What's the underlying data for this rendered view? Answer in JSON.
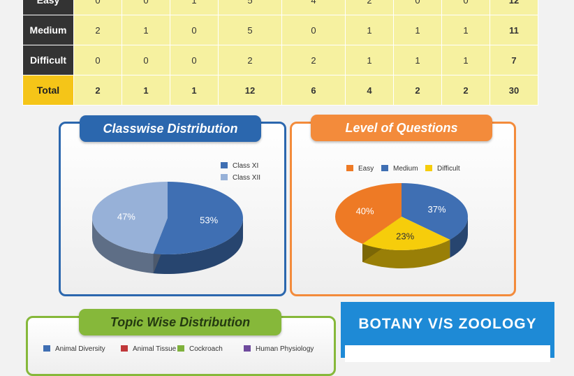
{
  "table": {
    "rows": [
      {
        "label": "Easy",
        "cells": [
          "0",
          "0",
          "1",
          "5",
          "4",
          "2",
          "0",
          "0"
        ],
        "total": "12"
      },
      {
        "label": "Medium",
        "cells": [
          "2",
          "1",
          "0",
          "5",
          "0",
          "1",
          "1",
          "1"
        ],
        "total": "11"
      },
      {
        "label": "Difficult",
        "cells": [
          "0",
          "0",
          "0",
          "2",
          "2",
          "1",
          "1",
          "1"
        ],
        "total": "7"
      },
      {
        "label": "Total",
        "cells": [
          "2",
          "1",
          "1",
          "12",
          "6",
          "4",
          "2",
          "2"
        ],
        "total": "30"
      }
    ]
  },
  "classwise": {
    "title": "Classwise Distribution",
    "legend": [
      "Class XI",
      "Class XII"
    ]
  },
  "level": {
    "title": "Level of Questions",
    "legend": [
      "Easy",
      "Medium",
      "Difficult"
    ]
  },
  "topic": {
    "title": "Topic Wise Distribution",
    "legend": [
      "Animal Diversity",
      "Animal Tissue",
      "Cockroach",
      "Human Physiology"
    ]
  },
  "botany": {
    "title": "BOTANY V/S ZOOLOGY"
  },
  "colors": {
    "classXI": "#3f6fb3",
    "classXII": "#97b1d8",
    "easy": "#ee7a25",
    "medium": "#3f6fb3",
    "difficult": "#f6cd0b",
    "animal_diversity": "#3f6fb3",
    "animal_tissue": "#c0383a",
    "cockroach": "#7fb13c",
    "human_physiology": "#6f4b9d",
    "classwise_accent": "#2b67ae",
    "level_accent": "#f38b3b",
    "topic_accent": "#86b83a",
    "botany_accent": "#1e8ad6",
    "table_header": "#333333",
    "table_total": "#f5c518",
    "table_cell": "#f6f1a0"
  },
  "chart_data": [
    {
      "type": "pie",
      "title": "Classwise Distribution",
      "labels": [
        "Class XI",
        "Class XII"
      ],
      "values": [
        53,
        47
      ],
      "value_labels": [
        "53%",
        "47%"
      ],
      "legend_position": "top-right"
    },
    {
      "type": "pie",
      "title": "Level of Questions",
      "labels": [
        "Easy",
        "Medium",
        "Difficult"
      ],
      "values": [
        40,
        37,
        23
      ],
      "value_labels": [
        "40%",
        "37%",
        "23%"
      ],
      "legend_position": "top"
    }
  ]
}
